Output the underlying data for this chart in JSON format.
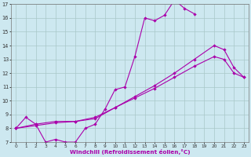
{
  "xlabel": "Windchill (Refroidissement éolien,°C)",
  "bg_color": "#cde8f0",
  "grid_color": "#a8c8c8",
  "line_color": "#aa00aa",
  "xlim": [
    -0.5,
    23.5
  ],
  "ylim": [
    7,
    17
  ],
  "xticks": [
    0,
    1,
    2,
    3,
    4,
    5,
    6,
    7,
    8,
    9,
    10,
    11,
    12,
    13,
    14,
    15,
    16,
    17,
    18,
    19,
    20,
    21,
    22,
    23
  ],
  "yticks": [
    7,
    8,
    9,
    10,
    11,
    12,
    13,
    14,
    15,
    16,
    17
  ],
  "line1_x": [
    0,
    1,
    2,
    3,
    4,
    5,
    6,
    7,
    8,
    9,
    10,
    11,
    12,
    13,
    14,
    15,
    16,
    17,
    18
  ],
  "line1_y": [
    8.0,
    8.8,
    8.3,
    7.0,
    7.2,
    7.0,
    7.0,
    8.0,
    8.3,
    9.4,
    10.8,
    11.0,
    13.2,
    16.0,
    15.8,
    16.2,
    17.3,
    16.7,
    16.3
  ],
  "line2_x": [
    0,
    2,
    4,
    6,
    8,
    10,
    12,
    14,
    16,
    18,
    20,
    21,
    22,
    23
  ],
  "line2_y": [
    8.0,
    8.3,
    8.5,
    8.5,
    8.7,
    9.5,
    10.3,
    11.1,
    12.0,
    13.0,
    14.0,
    13.7,
    12.4,
    11.7
  ],
  "line3_x": [
    0,
    2,
    4,
    6,
    8,
    10,
    12,
    14,
    16,
    18,
    20,
    21,
    22,
    23
  ],
  "line3_y": [
    8.0,
    8.2,
    8.4,
    8.5,
    8.8,
    9.5,
    10.2,
    10.9,
    11.7,
    12.5,
    13.2,
    13.0,
    12.0,
    11.7
  ]
}
